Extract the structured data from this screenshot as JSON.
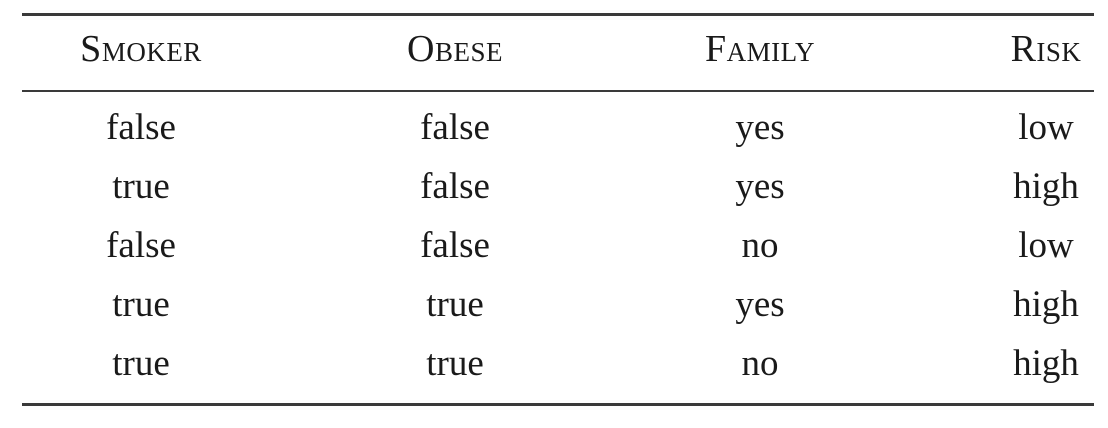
{
  "table": {
    "headers": [
      "Smoker",
      "Obese",
      "Family",
      "Risk"
    ],
    "rows": [
      [
        "false",
        "false",
        "yes",
        "low"
      ],
      [
        "true",
        "false",
        "yes",
        "high"
      ],
      [
        "false",
        "false",
        "no",
        "low"
      ],
      [
        "true",
        "true",
        "yes",
        "high"
      ],
      [
        "true",
        "true",
        "no",
        "high"
      ]
    ]
  }
}
